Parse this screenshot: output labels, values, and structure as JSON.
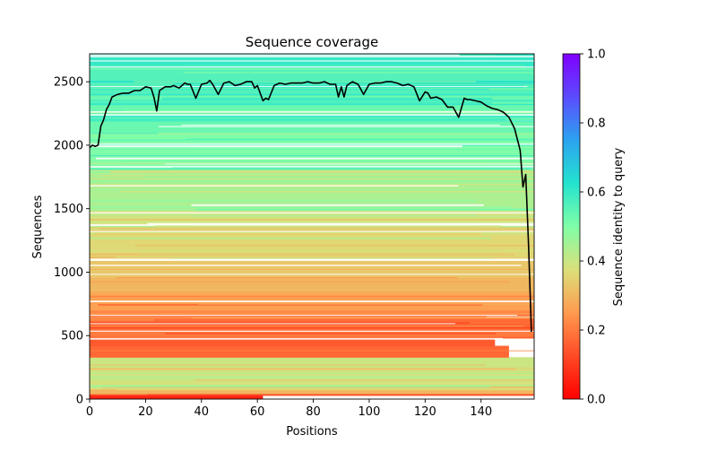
{
  "chart_data": {
    "type": "heatmap",
    "title": "Sequence coverage",
    "xlabel": "Positions",
    "ylabel": "Sequences",
    "xlim": [
      0,
      159
    ],
    "ylim": [
      0,
      2720
    ],
    "xticks": [
      0,
      20,
      40,
      60,
      80,
      100,
      120,
      140
    ],
    "yticks": [
      0,
      500,
      1000,
      1500,
      2000,
      2500
    ],
    "grid": false,
    "colorbar": {
      "label": "Sequence identity to query",
      "range": [
        0.0,
        1.0
      ],
      "ticks": [
        "0.0",
        "0.2",
        "0.4",
        "0.6",
        "0.8",
        "1.0"
      ],
      "colormap": "rainbow_r"
    },
    "identity_bands": [
      {
        "y": [
          0,
          40
        ],
        "x": [
          0,
          62
        ],
        "identity": 0.06
      },
      {
        "y": [
          40,
          80
        ],
        "x": [
          0,
          159
        ],
        "identity": 0.3
      },
      {
        "y": [
          80,
          140
        ],
        "x": [
          0,
          159
        ],
        "identity": 0.38
      },
      {
        "y": [
          140,
          330
        ],
        "x": [
          0,
          159
        ],
        "identity": 0.4
      },
      {
        "y": [
          330,
          420
        ],
        "x": [
          0,
          150
        ],
        "identity": 0.17
      },
      {
        "y": [
          420,
          480
        ],
        "x": [
          0,
          145
        ],
        "identity": 0.15
      },
      {
        "y": [
          480,
          540
        ],
        "x": [
          0,
          159
        ],
        "identity": 0.2
      },
      {
        "y": [
          540,
          620
        ],
        "x": [
          0,
          159
        ],
        "identity": 0.18
      },
      {
        "y": [
          620,
          700
        ],
        "x": [
          0,
          159
        ],
        "identity": 0.22
      },
      {
        "y": [
          700,
          850
        ],
        "x": [
          0,
          159
        ],
        "identity": 0.26
      },
      {
        "y": [
          850,
          960
        ],
        "x": [
          0,
          159
        ],
        "identity": 0.3
      },
      {
        "y": [
          960,
          1100
        ],
        "x": [
          0,
          159
        ],
        "identity": 0.33
      },
      {
        "y": [
          1100,
          1300
        ],
        "x": [
          0,
          159
        ],
        "identity": 0.36
      },
      {
        "y": [
          1300,
          1500
        ],
        "x": [
          0,
          159
        ],
        "identity": 0.39
      },
      {
        "y": [
          1500,
          1800
        ],
        "x": [
          0,
          159
        ],
        "identity": 0.44
      },
      {
        "y": [
          1800,
          2100
        ],
        "x": [
          0,
          159
        ],
        "identity": 0.5
      },
      {
        "y": [
          2100,
          2400
        ],
        "x": [
          0,
          159
        ],
        "identity": 0.53
      },
      {
        "y": [
          2400,
          2600
        ],
        "x": [
          0,
          159
        ],
        "identity": 0.56
      },
      {
        "y": [
          2600,
          2720
        ],
        "x": [
          0,
          159
        ],
        "identity": 0.6
      }
    ],
    "series": [
      {
        "type": "line",
        "color": "#000000",
        "x": [
          0,
          1,
          2,
          3,
          4,
          5,
          6,
          7,
          8,
          9,
          10,
          12,
          14,
          16,
          18,
          20,
          22,
          23,
          24,
          25,
          27,
          29,
          30,
          32,
          34,
          35,
          36,
          38,
          40,
          42,
          43,
          44,
          46,
          48,
          50,
          52,
          54,
          56,
          58,
          59,
          60,
          62,
          63,
          64,
          66,
          68,
          70,
          72,
          74,
          76,
          78,
          80,
          82,
          84,
          86,
          88,
          89,
          90,
          91,
          92,
          94,
          96,
          98,
          100,
          102,
          104,
          106,
          108,
          110,
          112,
          114,
          116,
          118,
          120,
          121,
          122,
          124,
          126,
          128,
          130,
          132,
          134,
          135,
          136,
          138,
          140,
          142,
          144,
          146,
          148,
          150,
          152,
          154,
          155,
          156,
          157,
          158
        ],
        "y": [
          1980,
          2000,
          1990,
          2000,
          2150,
          2200,
          2280,
          2320,
          2380,
          2390,
          2400,
          2410,
          2410,
          2430,
          2430,
          2460,
          2450,
          2380,
          2270,
          2430,
          2460,
          2460,
          2470,
          2450,
          2490,
          2480,
          2480,
          2370,
          2480,
          2490,
          2510,
          2480,
          2400,
          2490,
          2500,
          2470,
          2480,
          2500,
          2500,
          2450,
          2470,
          2350,
          2370,
          2360,
          2470,
          2490,
          2480,
          2490,
          2490,
          2490,
          2500,
          2490,
          2490,
          2500,
          2480,
          2480,
          2380,
          2460,
          2380,
          2470,
          2500,
          2480,
          2400,
          2480,
          2490,
          2490,
          2500,
          2500,
          2490,
          2470,
          2480,
          2460,
          2350,
          2420,
          2410,
          2370,
          2380,
          2360,
          2300,
          2300,
          2220,
          2370,
          2360,
          2360,
          2350,
          2340,
          2310,
          2290,
          2280,
          2260,
          2220,
          2130,
          1960,
          1670,
          1770,
          1200,
          530
        ]
      }
    ]
  }
}
